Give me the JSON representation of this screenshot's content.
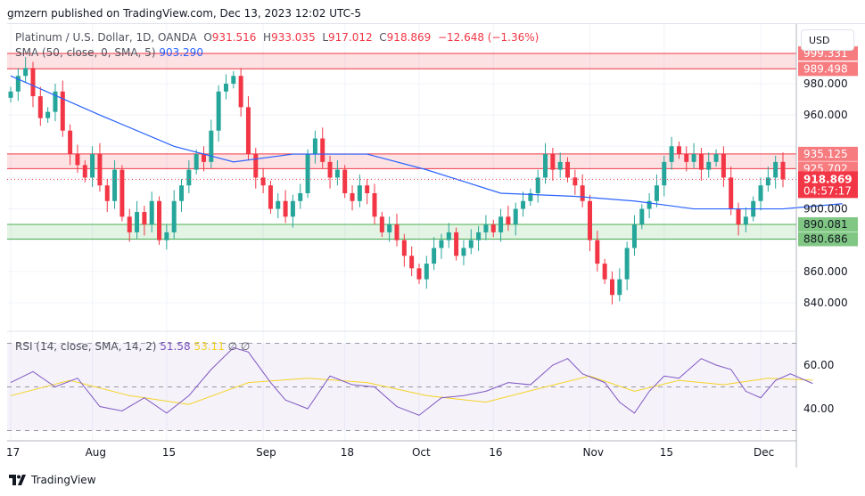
{
  "header": {
    "published": "gmzern published on TradingView.com, Dec 13, 2023 12:02 UTC-5"
  },
  "legend": {
    "symbol": "Platinum / U.S. Dollar, 1D, OANDA",
    "o": "931.516",
    "h": "933.035",
    "l": "917.012",
    "c": "918.869",
    "change": "−12.648 (−1.36%)",
    "sma_label": "SMA (50, close, 0, SMA, 5)",
    "sma_value": "903.290",
    "rsi_label": "RSI (14, close, SMA, 14, 2)",
    "rsi_value": "51.58",
    "rsi_sma_value": "53.11",
    "rsi_extra": "∅ ∅"
  },
  "currency": "USD",
  "brand": "TradingView",
  "colors": {
    "up": "#26a69a",
    "down": "#f23645",
    "sma": "#2962ff",
    "rsi": "#7e57c2",
    "rsi_sma": "#f5d327",
    "zone_red": "#f77c80",
    "zone_green": "#81c784"
  },
  "zones": [
    {
      "top": 999.331,
      "bottom": 989.498,
      "color": "red",
      "labels": [
        "999.331",
        "989.498"
      ]
    },
    {
      "top": 935.125,
      "bottom": 925.702,
      "color": "red",
      "labels": [
        "935.125",
        "925.702"
      ]
    },
    {
      "top": 890.081,
      "bottom": 880.686,
      "color": "green",
      "labels": [
        "890.081",
        "880.686"
      ]
    }
  ],
  "last_price": {
    "value": 918.869,
    "label": "918.869",
    "countdown": "04:57:17"
  },
  "price_axis": [
    "980.000",
    "960.000",
    "900.000",
    "860.000",
    "840.000"
  ],
  "rsi_axis": [
    "60.00",
    "40.00"
  ],
  "time_axis": [
    {
      "label": "17",
      "bar": 0
    },
    {
      "label": "Aug",
      "bar": 11
    },
    {
      "label": "15",
      "bar": 21
    },
    {
      "label": "Sep",
      "bar": 34
    },
    {
      "label": "18",
      "bar": 45
    },
    {
      "label": "Oct",
      "bar": 55
    },
    {
      "label": "16",
      "bar": 65
    },
    {
      "label": "Nov",
      "bar": 78
    },
    {
      "label": "15",
      "bar": 88
    },
    {
      "label": "Dec",
      "bar": 101
    }
  ],
  "chart_data": {
    "type": "candlestick",
    "ylim": [
      830,
      1005
    ],
    "closes": [
      975,
      985,
      990,
      972,
      958,
      962,
      975,
      950,
      935,
      928,
      920,
      935,
      915,
      905,
      925,
      895,
      885,
      898,
      890,
      905,
      880,
      885,
      905,
      915,
      925,
      935,
      930,
      950,
      975,
      980,
      985,
      965,
      935,
      920,
      915,
      900,
      905,
      895,
      905,
      910,
      935,
      945,
      930,
      920,
      925,
      910,
      905,
      915,
      910,
      895,
      885,
      890,
      880,
      870,
      862,
      855,
      865,
      875,
      880,
      885,
      870,
      875,
      880,
      885,
      890,
      885,
      895,
      890,
      900,
      905,
      910,
      920,
      935,
      925,
      930,
      920,
      915,
      905,
      880,
      865,
      855,
      845,
      855,
      875,
      890,
      900,
      905,
      915,
      930,
      940,
      935,
      930,
      935,
      925,
      930,
      935,
      920,
      900,
      890,
      895,
      905,
      915,
      920,
      930,
      918.869
    ],
    "sma": [
      [
        0,
        985
      ],
      [
        12,
        960
      ],
      [
        22,
        940
      ],
      [
        30,
        930
      ],
      [
        38,
        935
      ],
      [
        48,
        935
      ],
      [
        56,
        925
      ],
      [
        66,
        910
      ],
      [
        76,
        908
      ],
      [
        84,
        905
      ],
      [
        92,
        900
      ],
      [
        104,
        900
      ],
      [
        112,
        903.29
      ]
    ],
    "rsi": [
      [
        0,
        52
      ],
      [
        3,
        57
      ],
      [
        6,
        50
      ],
      [
        9,
        54
      ],
      [
        12,
        41
      ],
      [
        15,
        39
      ],
      [
        18,
        45
      ],
      [
        21,
        38
      ],
      [
        24,
        46
      ],
      [
        27,
        58
      ],
      [
        30,
        68
      ],
      [
        32,
        66
      ],
      [
        35,
        52
      ],
      [
        37,
        44
      ],
      [
        40,
        40
      ],
      [
        43,
        55
      ],
      [
        46,
        51
      ],
      [
        49,
        50
      ],
      [
        52,
        41
      ],
      [
        55,
        37
      ],
      [
        58,
        45
      ],
      [
        61,
        46
      ],
      [
        64,
        48
      ],
      [
        67,
        52
      ],
      [
        70,
        51
      ],
      [
        73,
        60
      ],
      [
        75,
        63
      ],
      [
        77,
        56
      ],
      [
        80,
        52
      ],
      [
        82,
        43
      ],
      [
        84,
        38
      ],
      [
        86,
        48
      ],
      [
        88,
        55
      ],
      [
        90,
        54
      ],
      [
        93,
        63
      ],
      [
        95,
        60
      ],
      [
        97,
        58
      ],
      [
        99,
        48
      ],
      [
        101,
        45
      ],
      [
        103,
        53
      ],
      [
        105,
        56
      ],
      [
        108,
        51.58
      ]
    ],
    "rsi_sma": [
      [
        0,
        46
      ],
      [
        8,
        53
      ],
      [
        16,
        46
      ],
      [
        24,
        42
      ],
      [
        32,
        52
      ],
      [
        40,
        54
      ],
      [
        48,
        52
      ],
      [
        56,
        46
      ],
      [
        64,
        43
      ],
      [
        72,
        50
      ],
      [
        78,
        55
      ],
      [
        84,
        48
      ],
      [
        90,
        53
      ],
      [
        96,
        51
      ],
      [
        102,
        54
      ],
      [
        108,
        53.11
      ]
    ],
    "rsi_levels": [
      70,
      50,
      30
    ]
  }
}
